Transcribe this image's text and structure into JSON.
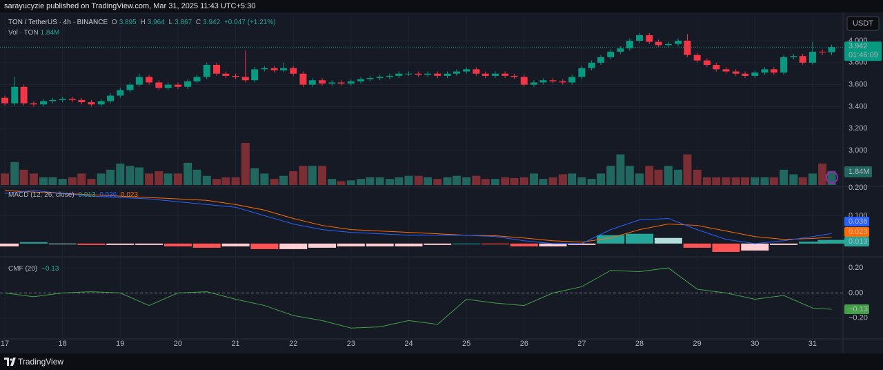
{
  "header": {
    "published": "sarayucyzie published on TradingView.com, Mar 31, 2025 11:43 UTC+5:30"
  },
  "footer": {
    "brand": "TradingView"
  },
  "chart_data": [
    {
      "type": "candlestick",
      "legend": {
        "symbol": "TON / TetherUS · 4h · BINANCE",
        "o": "O",
        "h": "H",
        "l": "L",
        "c": "C",
        "change": "+0.047 (+1.21%)"
      },
      "currency": "USDT",
      "countdown": "01:46:09",
      "up_color": "#089981",
      "down_color": "#f23645",
      "xlim": [
        16.916,
        31.527
      ],
      "xticks": [
        17,
        18,
        19,
        20,
        21,
        22,
        23,
        24,
        25,
        26,
        27,
        28,
        29,
        30,
        31
      ],
      "ylim": [
        2.686,
        4.22
      ],
      "yticks": [
        {
          "value": 3,
          "label": "3.000"
        },
        {
          "value": 3.2,
          "label": "3.200"
        },
        {
          "value": 3.4,
          "label": "3.400"
        },
        {
          "value": 3.6,
          "label": "3.600"
        },
        {
          "value": 3.8,
          "label": "3.800"
        },
        {
          "value": 4,
          "label": "4.000"
        }
      ],
      "grid": true,
      "x": [
        17,
        17.17,
        17.33,
        17.5,
        17.67,
        17.83,
        18,
        18.17,
        18.33,
        18.5,
        18.67,
        18.83,
        19,
        19.17,
        19.33,
        19.5,
        19.67,
        19.83,
        20,
        20.17,
        20.33,
        20.5,
        20.67,
        20.83,
        21,
        21.17,
        21.33,
        21.5,
        21.67,
        21.83,
        22,
        22.17,
        22.33,
        22.5,
        22.67,
        22.83,
        23,
        23.17,
        23.33,
        23.5,
        23.67,
        23.83,
        24,
        24.17,
        24.33,
        24.5,
        24.67,
        24.83,
        25,
        25.17,
        25.33,
        25.5,
        25.67,
        25.83,
        26,
        26.17,
        26.33,
        26.5,
        26.67,
        26.83,
        27,
        27.17,
        27.33,
        27.5,
        27.67,
        27.83,
        28,
        28.17,
        28.33,
        28.5,
        28.67,
        28.83,
        29,
        29.17,
        29.33,
        29.5,
        29.67,
        29.83,
        30,
        30.17,
        30.33,
        30.5,
        30.67,
        30.83,
        31,
        31.17,
        31.33
      ],
      "o": [
        3.48,
        3.43,
        3.58,
        3.43,
        3.42,
        3.45,
        3.46,
        3.47,
        3.46,
        3.44,
        3.42,
        3.45,
        3.5,
        3.55,
        3.6,
        3.67,
        3.62,
        3.57,
        3.6,
        3.58,
        3.63,
        3.67,
        3.78,
        3.7,
        3.68,
        3.67,
        3.64,
        3.74,
        3.75,
        3.73,
        3.75,
        3.7,
        3.6,
        3.64,
        3.61,
        3.62,
        3.61,
        3.63,
        3.65,
        3.66,
        3.67,
        3.68,
        3.7,
        3.7,
        3.69,
        3.7,
        3.68,
        3.7,
        3.72,
        3.74,
        3.7,
        3.68,
        3.7,
        3.68,
        3.67,
        3.6,
        3.62,
        3.64,
        3.63,
        3.62,
        3.67,
        3.75,
        3.8,
        3.85,
        3.9,
        3.93,
        4.0,
        4.05,
        3.99,
        3.96,
        3.97,
        4.0,
        3.87,
        3.82,
        3.78,
        3.74,
        3.72,
        3.7,
        3.68,
        3.71,
        3.74,
        3.71,
        3.85,
        3.86,
        3.8,
        3.9,
        3.895
      ],
      "h": [
        3.5,
        3.67,
        3.6,
        3.45,
        3.47,
        3.48,
        3.49,
        3.49,
        3.48,
        3.46,
        3.47,
        3.52,
        3.57,
        3.62,
        3.7,
        3.69,
        3.64,
        3.62,
        3.62,
        3.65,
        3.69,
        3.8,
        3.8,
        3.72,
        3.7,
        3.91,
        3.76,
        3.77,
        3.77,
        3.8,
        3.77,
        3.72,
        3.66,
        3.66,
        3.64,
        3.64,
        3.65,
        3.67,
        3.68,
        3.69,
        3.7,
        3.72,
        3.72,
        3.72,
        3.72,
        3.72,
        3.72,
        3.74,
        3.76,
        3.76,
        3.72,
        3.72,
        3.72,
        3.7,
        3.69,
        3.64,
        3.66,
        3.66,
        3.65,
        3.69,
        3.77,
        3.82,
        3.87,
        3.92,
        3.95,
        4.02,
        4.07,
        4.07,
        4.01,
        3.99,
        4.02,
        4.06,
        3.89,
        3.84,
        3.8,
        3.76,
        3.74,
        3.72,
        3.73,
        3.76,
        3.76,
        3.87,
        3.88,
        3.88,
        3.99,
        3.92,
        3.964
      ],
      "l": [
        3.41,
        3.41,
        3.41,
        3.4,
        3.4,
        3.43,
        3.44,
        3.44,
        3.42,
        3.4,
        3.4,
        3.43,
        3.48,
        3.53,
        3.58,
        3.6,
        3.55,
        3.55,
        3.56,
        3.56,
        3.61,
        3.65,
        3.68,
        3.66,
        3.65,
        3.62,
        3.62,
        3.72,
        3.71,
        3.71,
        3.68,
        3.58,
        3.58,
        3.59,
        3.59,
        3.59,
        3.59,
        3.61,
        3.63,
        3.64,
        3.65,
        3.66,
        3.68,
        3.67,
        3.67,
        3.66,
        3.66,
        3.68,
        3.7,
        3.68,
        3.66,
        3.66,
        3.66,
        3.65,
        3.58,
        3.58,
        3.6,
        3.61,
        3.6,
        3.6,
        3.65,
        3.73,
        3.78,
        3.83,
        3.88,
        3.91,
        3.98,
        3.97,
        3.94,
        3.94,
        3.95,
        3.85,
        3.8,
        3.76,
        3.72,
        3.7,
        3.68,
        3.66,
        3.66,
        3.69,
        3.69,
        3.69,
        3.83,
        3.78,
        3.78,
        3.87,
        3.867
      ],
      "c": [
        3.43,
        3.58,
        3.43,
        3.42,
        3.45,
        3.46,
        3.47,
        3.46,
        3.44,
        3.42,
        3.45,
        3.5,
        3.55,
        3.6,
        3.67,
        3.62,
        3.57,
        3.6,
        3.58,
        3.63,
        3.67,
        3.78,
        3.7,
        3.68,
        3.67,
        3.64,
        3.74,
        3.75,
        3.73,
        3.75,
        3.7,
        3.6,
        3.64,
        3.61,
        3.62,
        3.61,
        3.63,
        3.65,
        3.66,
        3.67,
        3.68,
        3.7,
        3.7,
        3.69,
        3.7,
        3.68,
        3.7,
        3.72,
        3.74,
        3.7,
        3.68,
        3.7,
        3.68,
        3.67,
        3.6,
        3.62,
        3.64,
        3.63,
        3.62,
        3.67,
        3.75,
        3.8,
        3.85,
        3.9,
        3.93,
        4.0,
        4.05,
        3.99,
        3.96,
        3.97,
        4.0,
        3.87,
        3.82,
        3.78,
        3.74,
        3.72,
        3.7,
        3.68,
        3.71,
        3.74,
        3.71,
        3.85,
        3.86,
        3.8,
        3.9,
        3.895,
        3.942
      ]
    },
    {
      "type": "bar",
      "legend": "Vol · TON",
      "last_label": "1.84M",
      "up_color": "#22675f",
      "down_color": "#7c2e35",
      "ylim": [
        0,
        22
      ],
      "values": [
        1.5,
        3.0,
        2.0,
        1.5,
        1.0,
        1.0,
        0.8,
        1.0,
        1.5,
        0.8,
        1.5,
        2.0,
        2.8,
        2.5,
        2.3,
        1.5,
        1.8,
        1.5,
        1.5,
        2.9,
        2.0,
        1.2,
        0.8,
        1.0,
        1.0,
        5.5,
        2.2,
        1.5,
        0.8,
        1.2,
        1.8,
        2.5,
        2.5,
        2.5,
        0.8,
        0.5,
        0.6,
        0.8,
        1.0,
        1.0,
        0.8,
        1.0,
        1.2,
        1.2,
        1.0,
        0.8,
        1.0,
        1.2,
        1.0,
        1.2,
        0.8,
        0.8,
        1.0,
        0.9,
        1.0,
        1.5,
        0.8,
        1.0,
        1.4,
        1.5,
        1.0,
        0.8,
        1.5,
        2.5,
        4.0,
        2.5,
        1.5,
        2.5,
        2.0,
        2.5,
        2.0,
        4.0,
        2.0,
        1.0,
        1.0,
        1.0,
        1.0,
        1.0,
        1.0,
        1.0,
        1.0,
        2.0,
        1.4,
        1.0,
        1.5,
        2.8,
        1.84
      ]
    },
    {
      "type": "line",
      "title": "MACD (12, 26, close)",
      "ylim": [
        -0.0425,
        0.2025
      ],
      "yticks": [
        {
          "value": 0.2,
          "label": "0.200"
        },
        {
          "value": 0.1,
          "label": "0.100"
        }
      ],
      "x": [
        17,
        17.5,
        18,
        18.5,
        19,
        19.5,
        20,
        20.5,
        21,
        21.5,
        22,
        22.5,
        23,
        23.5,
        24,
        24.5,
        25,
        25.5,
        26,
        26.5,
        27,
        27.5,
        28,
        28.5,
        29,
        29.5,
        30,
        30.5,
        31,
        31.33
      ],
      "histogram": {
        "up_color": "#26a69a",
        "down_color": "#ff5252",
        "values": [
          -0.01,
          0.005,
          0,
          -0.005,
          -0.005,
          -0.005,
          -0.01,
          -0.015,
          -0.01,
          -0.02,
          -0.02,
          -0.015,
          -0.01,
          -0.01,
          -0.01,
          -0.005,
          0,
          -0.003,
          -0.01,
          -0.01,
          -0.005,
          0.03,
          0.035,
          0.02,
          -0.015,
          -0.03,
          -0.025,
          -0.005,
          0.007,
          0.013
        ]
      },
      "macd": {
        "color": "#2962ff",
        "values": [
          0.18,
          0.19,
          0.18,
          0.17,
          0.165,
          0.16,
          0.15,
          0.14,
          0.13,
          0.1,
          0.07,
          0.05,
          0.04,
          0.035,
          0.03,
          0.03,
          0.03,
          0.025,
          0.01,
          0,
          0,
          0.05,
          0.085,
          0.09,
          0.05,
          0.015,
          0,
          0.01,
          0.025,
          0.036
        ]
      },
      "signal": {
        "color": "#ff6d00",
        "values": [
          0.19,
          0.185,
          0.18,
          0.175,
          0.17,
          0.165,
          0.16,
          0.155,
          0.14,
          0.12,
          0.09,
          0.065,
          0.05,
          0.045,
          0.04,
          0.035,
          0.03,
          0.028,
          0.02,
          0.01,
          0.005,
          0.02,
          0.05,
          0.07,
          0.065,
          0.045,
          0.025,
          0.015,
          0.018,
          0.023
        ]
      }
    },
    {
      "type": "line",
      "title": "CMF (20)",
      "last_label": "−0.13",
      "color": "#43a047",
      "ylim": [
        -0.361,
        0.283
      ],
      "yticks": [
        {
          "value": 0.2,
          "label": "0.20"
        },
        {
          "value": 0,
          "label": "0.00"
        },
        {
          "value": -0.2,
          "label": "−0.20"
        }
      ],
      "x": [
        17,
        17.5,
        18,
        18.5,
        19,
        19.5,
        20,
        20.5,
        21,
        21.5,
        22,
        22.5,
        23,
        23.5,
        24,
        24.5,
        25,
        25.5,
        26,
        26.5,
        27,
        27.5,
        28,
        28.5,
        29,
        29.5,
        30,
        30.5,
        31,
        31.33
      ],
      "values": [
        0,
        -0.03,
        0,
        0.01,
        0,
        -0.1,
        0,
        0.01,
        -0.05,
        -0.1,
        -0.18,
        -0.22,
        -0.28,
        -0.27,
        -0.22,
        -0.25,
        -0.05,
        -0.08,
        -0.1,
        0,
        0.05,
        0.18,
        0.17,
        0.2,
        0.03,
        0,
        -0.05,
        -0.02,
        -0.12,
        -0.13
      ]
    }
  ]
}
